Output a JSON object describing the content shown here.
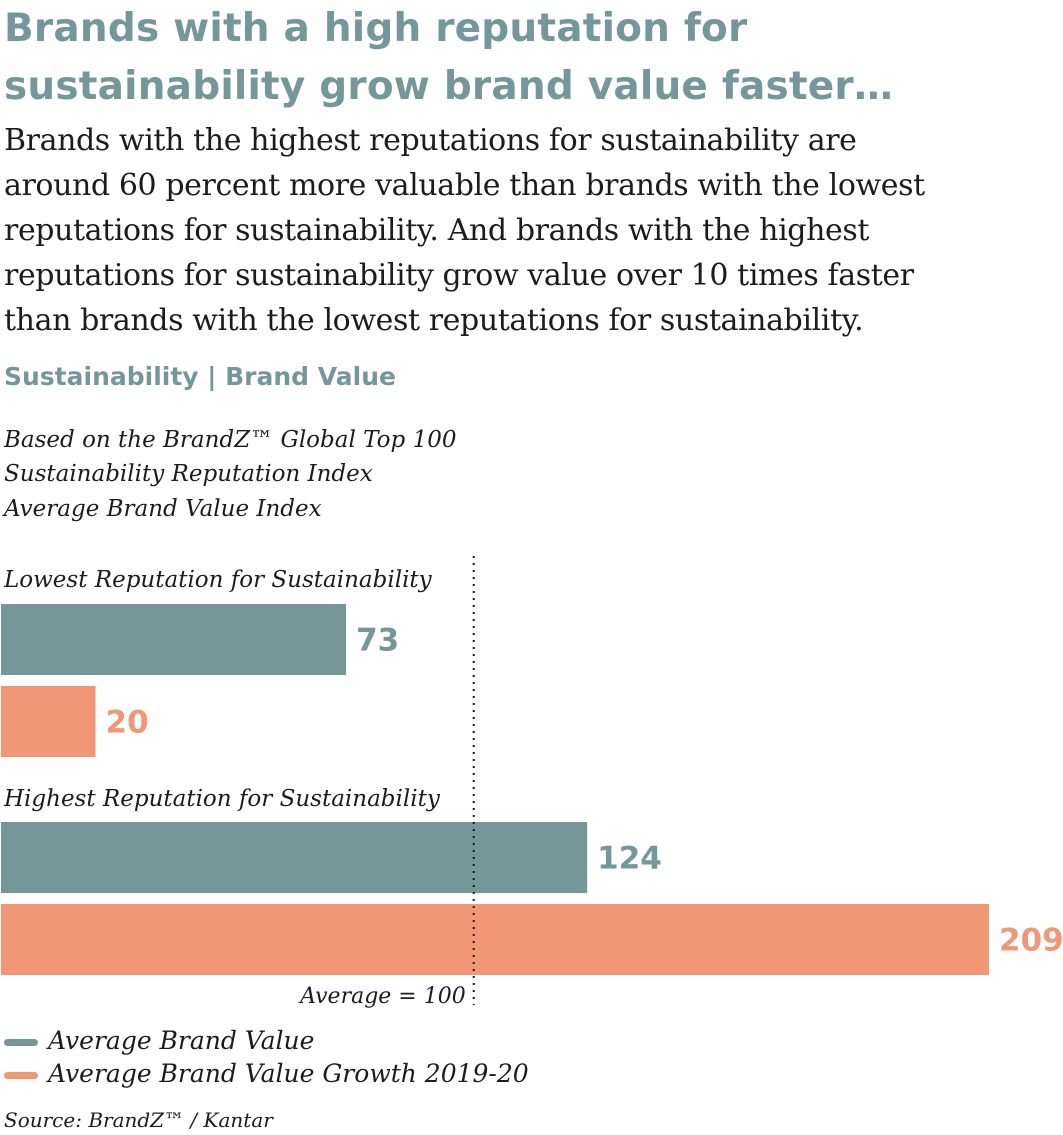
{
  "title_lines": [
    "Brands with a high reputation for",
    "sustainability grow brand value faster…"
  ],
  "subtitle_lines": [
    "Brands with the highest reputations for sustainability are",
    "around 60 percent more valuable than brands with the lowest",
    "reputations for sustainability. And brands with the highest",
    "reputations for sustainability grow value over 10 times faster",
    "than brands with the lowest reputations for sustainability."
  ],
  "section_heading": "Sustainability | Brand Value",
  "notes": [
    "Based on the BrandZ™ Global Top 100",
    "Sustainability Reputation Index",
    "Average Brand Value Index"
  ],
  "legend": [
    {
      "label": "Average Brand Value",
      "color": "#76979a"
    },
    {
      "label": "Average Brand Value Growth 2019-20",
      "color": "#f29775"
    }
  ],
  "source": "Source: BrandZ™ / Kantar",
  "chart_data": {
    "type": "bar",
    "orientation": "horizontal",
    "categories": [
      "Lowest Reputation for Sustainability",
      "Highest Reputation for Sustainability"
    ],
    "series": [
      {
        "name": "Average Brand Value",
        "values": [
          73,
          124
        ],
        "color": "#76979a"
      },
      {
        "name": "Average Brand Value Growth 2019-20",
        "values": [
          20,
          209
        ],
        "color": "#f29775"
      }
    ],
    "reference_line": {
      "value": 100,
      "label": "Average = 100"
    },
    "xlim": [
      0,
      209
    ]
  }
}
